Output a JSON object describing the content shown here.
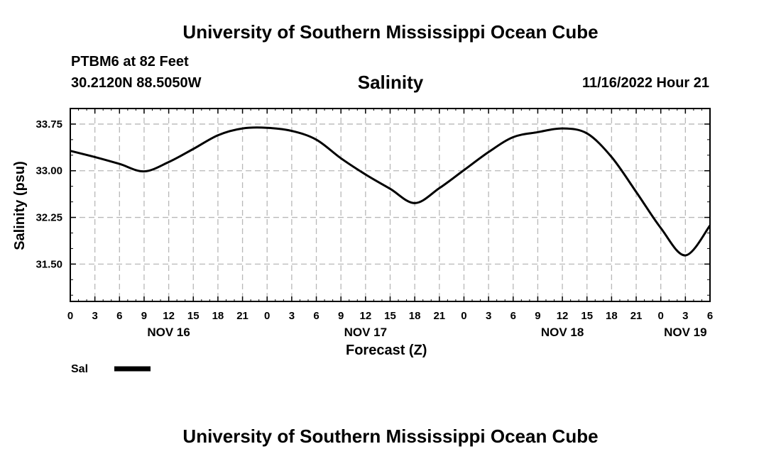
{
  "header": {
    "title": "University of Southern Mississippi Ocean Cube",
    "station": "PTBM6 at 82 Feet",
    "coords": "30.2120N  88.5050W",
    "datetime": "11/16/2022 Hour 21"
  },
  "footer": {
    "title": "University of Southern Mississippi Ocean Cube"
  },
  "colors": {
    "line": "#000000",
    "grid": "#b8b8b8",
    "background": "#ffffff"
  },
  "chart_data": {
    "type": "line",
    "title": "Salinity",
    "xlabel": "Forecast (Z)",
    "ylabel": "Salinity (psu)",
    "xlim": [
      0,
      78
    ],
    "ylim": [
      30.9,
      34.0
    ],
    "grid": true,
    "x_tick_labels": [
      "0",
      "3",
      "6",
      "9",
      "12",
      "15",
      "18",
      "21",
      "0",
      "3",
      "6",
      "9",
      "12",
      "15",
      "18",
      "21",
      "0",
      "3",
      "6",
      "9",
      "12",
      "15",
      "18",
      "21",
      "0",
      "3",
      "6"
    ],
    "y_ticks": [
      31.5,
      32.25,
      33.0,
      33.75
    ],
    "y_tick_labels": [
      "31.50",
      "32.25",
      "33.00",
      "33.75"
    ],
    "date_labels": [
      {
        "hours": 12,
        "label": "NOV 16"
      },
      {
        "hours": 36,
        "label": "NOV 17"
      },
      {
        "hours": 60,
        "label": "NOV 18"
      },
      {
        "hours": 75,
        "label": "NOV 19"
      }
    ],
    "legend": {
      "position": "bottom-left",
      "entries": [
        "Sal"
      ]
    },
    "series": [
      {
        "name": "Sal",
        "x": [
          0,
          3,
          6,
          9,
          12,
          15,
          18,
          21,
          24,
          27,
          30,
          33,
          36,
          39,
          42,
          45,
          48,
          51,
          54,
          57,
          60,
          63,
          66,
          69,
          72,
          75,
          78
        ],
        "y": [
          33.32,
          33.22,
          33.11,
          32.99,
          33.14,
          33.35,
          33.57,
          33.68,
          33.69,
          33.64,
          33.5,
          33.2,
          32.94,
          32.71,
          32.48,
          32.72,
          33.01,
          33.3,
          33.54,
          33.62,
          33.68,
          33.6,
          33.22,
          32.66,
          32.08,
          31.64,
          32.12
        ]
      }
    ]
  }
}
